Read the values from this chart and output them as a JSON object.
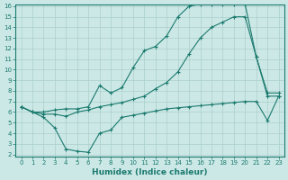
{
  "line1_x": [
    0,
    1,
    2,
    3,
    4,
    5,
    6,
    7,
    8,
    9,
    10,
    11,
    12,
    13,
    14,
    15,
    16,
    17,
    18,
    19,
    20,
    21,
    22,
    23
  ],
  "line1_y": [
    6.5,
    6.0,
    6.0,
    6.2,
    6.3,
    6.3,
    6.5,
    8.5,
    7.8,
    8.3,
    10.2,
    11.8,
    12.2,
    13.2,
    15.0,
    16.0,
    16.2,
    16.2,
    16.2,
    16.2,
    16.2,
    11.2,
    7.5,
    7.5
  ],
  "line2_x": [
    0,
    1,
    2,
    3,
    4,
    5,
    6,
    7,
    8,
    9,
    10,
    11,
    12,
    13,
    14,
    15,
    16,
    17,
    18,
    19,
    20,
    21,
    22,
    23
  ],
  "line2_y": [
    6.5,
    6.0,
    5.8,
    5.8,
    5.6,
    6.0,
    6.2,
    6.5,
    6.7,
    6.9,
    7.2,
    7.5,
    8.2,
    8.8,
    9.8,
    11.5,
    13.0,
    14.0,
    14.5,
    15.0,
    15.0,
    11.2,
    7.8,
    7.8
  ],
  "line3_x": [
    0,
    1,
    2,
    3,
    4,
    5,
    6,
    7,
    8,
    9,
    10,
    11,
    12,
    13,
    14,
    15,
    16,
    17,
    18,
    19,
    20,
    21,
    22,
    23
  ],
  "line3_y": [
    6.5,
    6.0,
    5.5,
    4.5,
    2.5,
    2.3,
    2.2,
    4.0,
    4.3,
    5.5,
    5.7,
    5.9,
    6.1,
    6.3,
    6.4,
    6.5,
    6.6,
    6.7,
    6.8,
    6.9,
    7.0,
    7.0,
    5.2,
    7.5
  ],
  "color": "#1a7a6e",
  "bg_color": "#cce8e6",
  "grid_color": "#aacfcc",
  "xlabel": "Humidex (Indice chaleur)",
  "ylim": [
    2,
    16
  ],
  "xlim": [
    0,
    23
  ],
  "yticks": [
    2,
    3,
    4,
    5,
    6,
    7,
    8,
    9,
    10,
    11,
    12,
    13,
    14,
    15,
    16
  ],
  "xticks": [
    0,
    1,
    2,
    3,
    4,
    5,
    6,
    7,
    8,
    9,
    10,
    11,
    12,
    13,
    14,
    15,
    16,
    17,
    18,
    19,
    20,
    21,
    22,
    23
  ],
  "tick_fontsize": 5.0,
  "xlabel_fontsize": 6.5,
  "lw": 0.8,
  "marker_size": 2.5
}
